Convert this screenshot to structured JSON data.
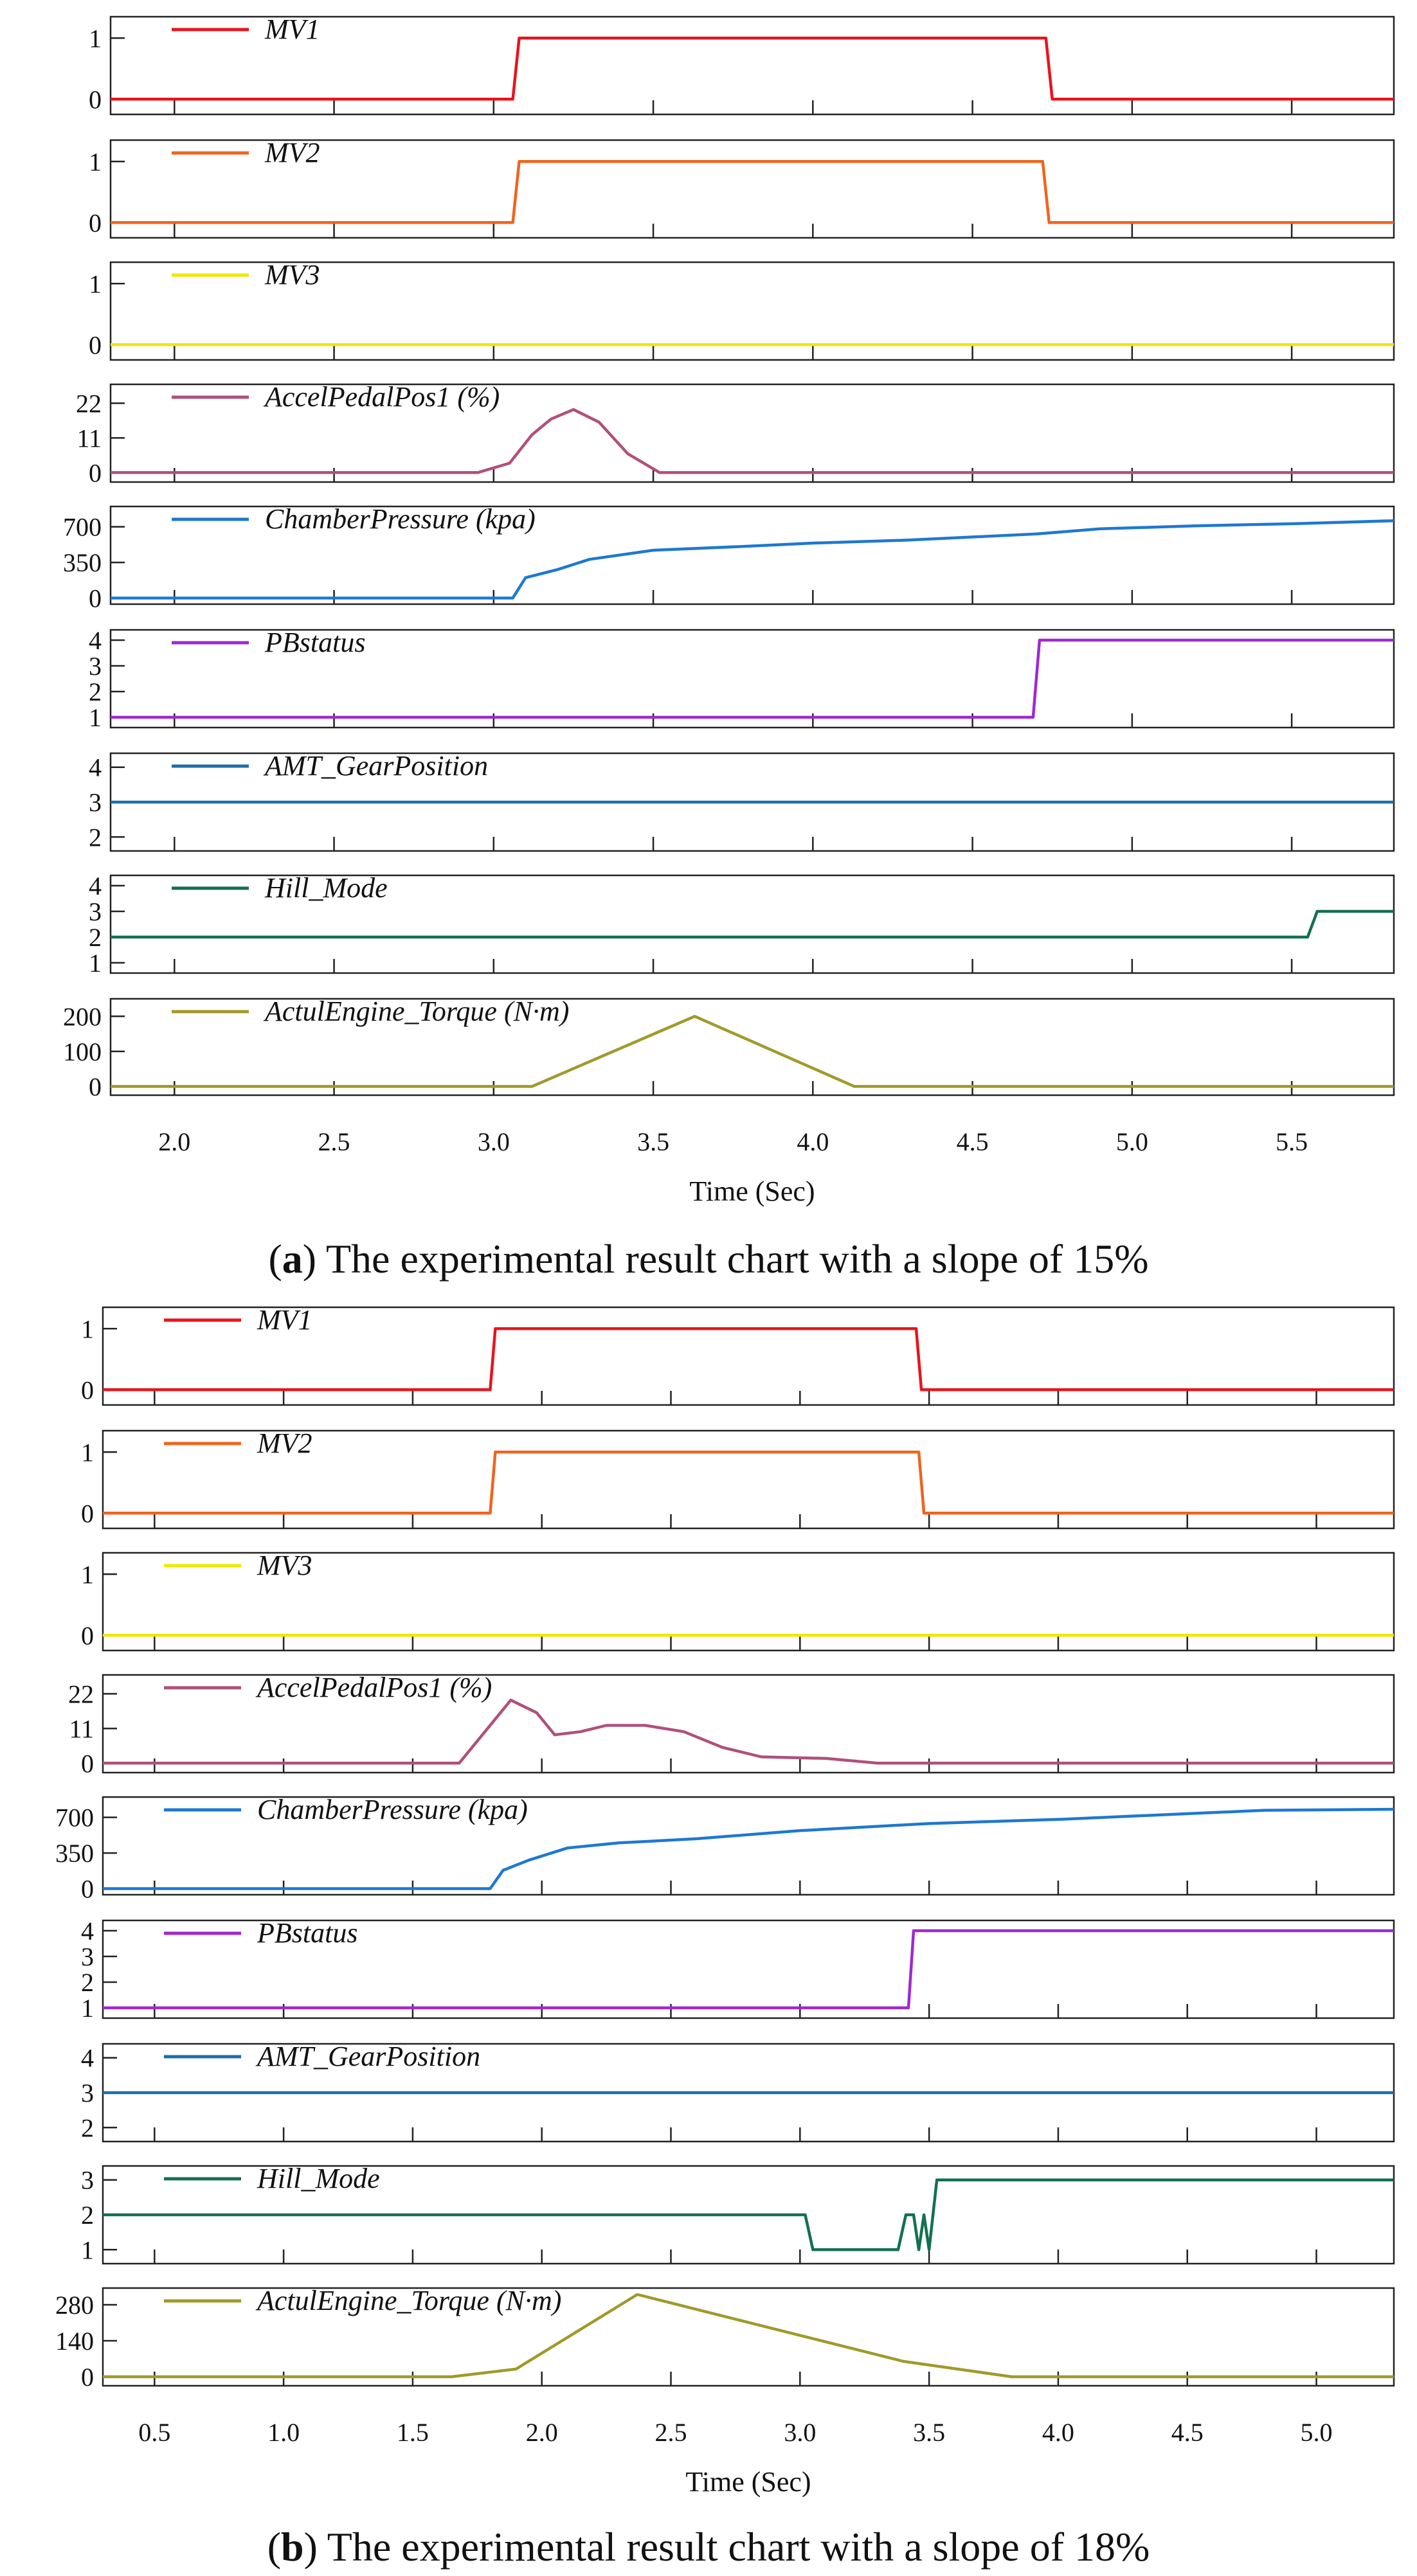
{
  "chart_data": [
    {
      "type": "line",
      "caption": {
        "letter": "a",
        "text": " The experimental result chart with a slope of 15%"
      },
      "xlabel": "Time (Sec)",
      "xlim": [
        1.8,
        5.82
      ],
      "xticks": [
        2.0,
        2.5,
        3.0,
        3.5,
        4.0,
        4.5,
        5.0,
        5.5
      ],
      "xtick_labels": [
        "2.0",
        "2.5",
        "3.0",
        "3.5",
        "4.0",
        "4.5",
        "5.0",
        "5.5"
      ],
      "panels": [
        {
          "name": "MV1",
          "color": "#e8141c",
          "ylim": [
            -0.25,
            1.35
          ],
          "yticks": [
            0,
            1
          ],
          "ytick_labels": [
            "0",
            "1"
          ],
          "x": [
            1.8,
            3.06,
            3.08,
            4.73,
            4.75,
            5.82
          ],
          "y": [
            0,
            0,
            1,
            1,
            0,
            0
          ]
        },
        {
          "name": "MV2",
          "color": "#f0641e",
          "ylim": [
            -0.25,
            1.35
          ],
          "yticks": [
            0,
            1
          ],
          "ytick_labels": [
            "0",
            "1"
          ],
          "x": [
            1.8,
            3.06,
            3.08,
            4.72,
            4.74,
            5.82
          ],
          "y": [
            0,
            0,
            1,
            1,
            0,
            0
          ]
        },
        {
          "name": "MV3",
          "color": "#f2e600",
          "ylim": [
            -0.25,
            1.35
          ],
          "yticks": [
            0,
            1
          ],
          "ytick_labels": [
            "0",
            "1"
          ],
          "x": [
            1.8,
            5.82
          ],
          "y": [
            0,
            0
          ]
        },
        {
          "name": "AccelPedalPos1 (%)",
          "color": "#b0507a",
          "ylim": [
            -3,
            28
          ],
          "yticks": [
            0,
            11,
            22
          ],
          "ytick_labels": [
            "0",
            "11",
            "22"
          ],
          "x": [
            1.8,
            2.95,
            3.05,
            3.12,
            3.18,
            3.25,
            3.33,
            3.42,
            3.52,
            5.82
          ],
          "y": [
            0,
            0,
            3,
            12,
            17,
            20,
            16,
            6,
            0,
            0
          ]
        },
        {
          "name": "ChamberPressure (kpa)",
          "color": "#1e78d2",
          "ylim": [
            -60,
            900
          ],
          "yticks": [
            0,
            350,
            700
          ],
          "ytick_labels": [
            "0",
            "350",
            "700"
          ],
          "x": [
            1.8,
            3.06,
            3.1,
            3.2,
            3.3,
            3.5,
            3.8,
            4.0,
            4.3,
            4.5,
            4.7,
            4.9,
            5.2,
            5.5,
            5.82
          ],
          "y": [
            0,
            0,
            200,
            280,
            380,
            470,
            510,
            540,
            570,
            600,
            630,
            680,
            710,
            730,
            760
          ]
        },
        {
          "name": "PBstatus",
          "color": "#a028d2",
          "ylim": [
            0.6,
            4.4
          ],
          "yticks": [
            1,
            2,
            3,
            4
          ],
          "ytick_labels": [
            "1",
            "2",
            "3",
            "4"
          ],
          "x": [
            1.8,
            4.69,
            4.71,
            5.82
          ],
          "y": [
            1,
            1,
            4,
            4
          ]
        },
        {
          "name": "AMT_GearPosition",
          "color": "#1c6ea8",
          "ylim": [
            1.6,
            4.4
          ],
          "yticks": [
            2,
            3,
            4
          ],
          "ytick_labels": [
            "2",
            "3",
            "4"
          ],
          "x": [
            1.8,
            5.82
          ],
          "y": [
            3,
            3
          ]
        },
        {
          "name": "Hill_Mode",
          "color": "#137050",
          "ylim": [
            0.6,
            4.4
          ],
          "yticks": [
            1,
            2,
            3,
            4
          ],
          "ytick_labels": [
            "1",
            "2",
            "3",
            "4"
          ],
          "x": [
            1.8,
            5.55,
            5.58,
            5.82
          ],
          "y": [
            2,
            2,
            3,
            3
          ]
        },
        {
          "name": "ActulEngine_Torque (N·m)",
          "color": "#a09a2a",
          "ylim": [
            -25,
            250
          ],
          "yticks": [
            0,
            100,
            200
          ],
          "ytick_labels": [
            "0",
            "100",
            "200"
          ],
          "x": [
            1.8,
            3.12,
            3.63,
            4.13,
            5.82
          ],
          "y": [
            0,
            0,
            200,
            0,
            0
          ]
        }
      ]
    },
    {
      "type": "line",
      "caption": {
        "letter": "b",
        "text": " The experimental result chart with a slope of 18%"
      },
      "xlabel": "Time (Sec)",
      "xlim": [
        0.3,
        5.3
      ],
      "xticks": [
        0.5,
        1.0,
        1.5,
        2.0,
        2.5,
        3.0,
        3.5,
        4.0,
        4.5,
        5.0
      ],
      "xtick_labels": [
        "0.5",
        "1.0",
        "1.5",
        "2.0",
        "2.5",
        "3.0",
        "3.5",
        "4.0",
        "4.5",
        "5.0"
      ],
      "panels": [
        {
          "name": "MV1",
          "color": "#e8141c",
          "ylim": [
            -0.25,
            1.35
          ],
          "yticks": [
            0,
            1
          ],
          "ytick_labels": [
            "0",
            "1"
          ],
          "x": [
            0.3,
            1.8,
            1.82,
            3.45,
            3.47,
            5.3
          ],
          "y": [
            0,
            0,
            1,
            1,
            0,
            0
          ]
        },
        {
          "name": "MV2",
          "color": "#f0641e",
          "ylim": [
            -0.25,
            1.35
          ],
          "yticks": [
            0,
            1
          ],
          "ytick_labels": [
            "0",
            "1"
          ],
          "x": [
            0.3,
            1.8,
            1.82,
            3.46,
            3.48,
            5.3
          ],
          "y": [
            0,
            0,
            1,
            1,
            0,
            0
          ]
        },
        {
          "name": "MV3",
          "color": "#f2e600",
          "ylim": [
            -0.25,
            1.35
          ],
          "yticks": [
            0,
            1
          ],
          "ytick_labels": [
            "0",
            "1"
          ],
          "x": [
            0.3,
            5.3
          ],
          "y": [
            0,
            0
          ]
        },
        {
          "name": "AccelPedalPos1 (%)",
          "color": "#b0507a",
          "ylim": [
            -3,
            28
          ],
          "yticks": [
            0,
            11,
            22
          ],
          "ytick_labels": [
            "0",
            "11",
            "22"
          ],
          "x": [
            0.3,
            1.68,
            1.88,
            1.98,
            2.05,
            2.15,
            2.25,
            2.4,
            2.55,
            2.7,
            2.85,
            3.1,
            3.3,
            5.3
          ],
          "y": [
            0,
            0,
            20,
            16,
            9,
            10,
            12,
            12,
            10,
            5,
            2,
            1.5,
            0,
            0
          ]
        },
        {
          "name": "ChamberPressure (kpa)",
          "color": "#1e78d2",
          "ylim": [
            -60,
            900
          ],
          "yticks": [
            0,
            350,
            700
          ],
          "ytick_labels": [
            "0",
            "350",
            "700"
          ],
          "x": [
            0.3,
            1.8,
            1.85,
            1.95,
            2.1,
            2.3,
            2.6,
            3.0,
            3.5,
            4.0,
            4.8,
            5.3
          ],
          "y": [
            0,
            0,
            180,
            280,
            400,
            450,
            490,
            570,
            640,
            680,
            770,
            780
          ]
        },
        {
          "name": "PBstatus",
          "color": "#a028d2",
          "ylim": [
            0.6,
            4.4
          ],
          "yticks": [
            1,
            2,
            3,
            4
          ],
          "ytick_labels": [
            "1",
            "2",
            "3",
            "4"
          ],
          "x": [
            0.3,
            3.42,
            3.44,
            5.3
          ],
          "y": [
            1,
            1,
            4,
            4
          ]
        },
        {
          "name": "AMT_GearPosition",
          "color": "#1c6ea8",
          "ylim": [
            1.6,
            4.4
          ],
          "yticks": [
            2,
            3,
            4
          ],
          "ytick_labels": [
            "2",
            "3",
            "4"
          ],
          "x": [
            0.3,
            5.3
          ],
          "y": [
            3,
            3
          ]
        },
        {
          "name": "Hill_Mode",
          "color": "#137050",
          "ylim": [
            0.6,
            3.4
          ],
          "yticks": [
            1,
            2,
            3
          ],
          "ytick_labels": [
            "1",
            "2",
            "3"
          ],
          "x": [
            0.3,
            3.02,
            3.05,
            3.38,
            3.41,
            3.44,
            3.46,
            3.48,
            3.5,
            3.53,
            5.3
          ],
          "y": [
            2,
            2,
            1,
            1,
            2,
            2,
            1,
            2,
            1,
            3,
            3
          ]
        },
        {
          "name": "ActulEngine_Torque (N·m)",
          "color": "#a09a2a",
          "ylim": [
            -35,
            345
          ],
          "yticks": [
            0,
            140,
            280
          ],
          "ytick_labels": [
            "0",
            "140",
            "280"
          ],
          "x": [
            0.3,
            1.65,
            1.9,
            2.37,
            3.4,
            3.82,
            5.3
          ],
          "y": [
            0,
            0,
            30,
            320,
            60,
            0,
            0
          ]
        }
      ]
    }
  ]
}
